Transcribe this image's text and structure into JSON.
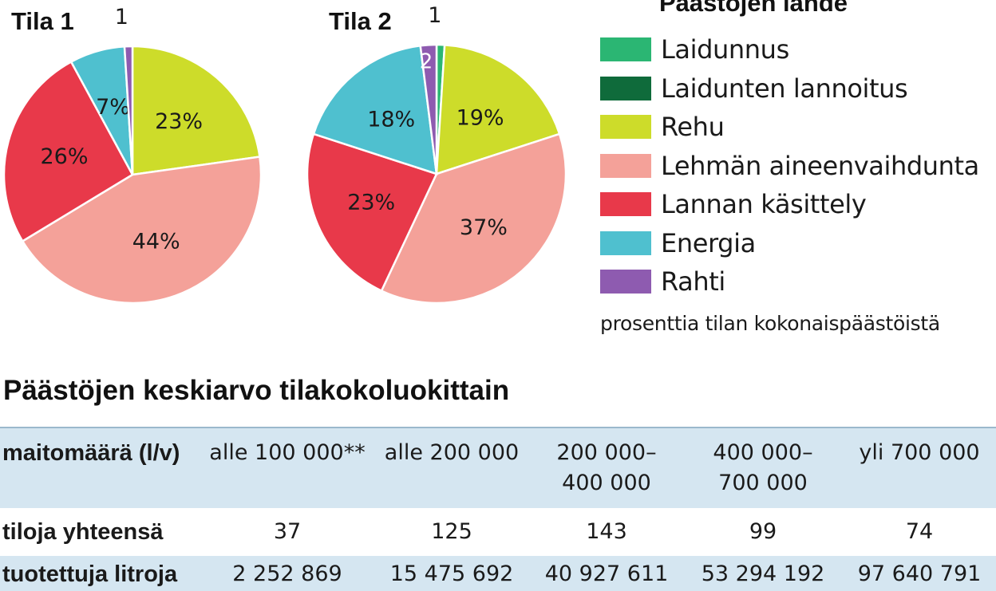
{
  "legend": {
    "title": "Päästöjen lähde",
    "items": [
      {
        "label": "Laidunnus",
        "color": "#2bb673"
      },
      {
        "label": "Laidunten lannoitus",
        "color": "#0f6b3b"
      },
      {
        "label": "Rehu",
        "color": "#cddc2a"
      },
      {
        "label": "Lehmän aineenvaihdunta",
        "color": "#f4a199"
      },
      {
        "label": "Lannan käsittely",
        "color": "#e8394a"
      },
      {
        "label": "Energia",
        "color": "#4fc0cf"
      },
      {
        "label": "Rahti",
        "color": "#8e5bb0"
      }
    ],
    "note": "prosenttia tilan kokonaispäästöistä"
  },
  "chart_data": [
    {
      "type": "pie",
      "title": "Tila 1",
      "slices": [
        {
          "category": "Rehu",
          "value": 23,
          "label": "23%"
        },
        {
          "category": "Lehmän aineenvaihdunta",
          "value": 44,
          "label": "44%"
        },
        {
          "category": "Lannan käsittely",
          "value": 26,
          "label": "26%"
        },
        {
          "category": "Energia",
          "value": 7,
          "label": "7%"
        },
        {
          "category": "Rahti",
          "value": 1,
          "label": "1"
        }
      ]
    },
    {
      "type": "pie",
      "title": "Tila 2",
      "slices": [
        {
          "category": "Laidunnus",
          "value": 1,
          "label": "1"
        },
        {
          "category": "Rehu",
          "value": 19,
          "label": "19%"
        },
        {
          "category": "Lehmän aineenvaihdunta",
          "value": 37,
          "label": "37%"
        },
        {
          "category": "Lannan käsittely",
          "value": 23,
          "label": "23%"
        },
        {
          "category": "Energia",
          "value": 18,
          "label": "18%"
        },
        {
          "category": "Rahti",
          "value": 2,
          "label": "2"
        }
      ]
    }
  ],
  "table": {
    "title": "Päästöjen keskiarvo tilakokoluokittain",
    "header": {
      "label": "maitomäärä (l/v)",
      "cols": [
        [
          "alle 100 000**"
        ],
        [
          "alle 200 000"
        ],
        [
          "200 000–",
          "400 000"
        ],
        [
          "400 000–",
          "700 000"
        ],
        [
          "yli 700 000"
        ]
      ]
    },
    "rows": [
      {
        "label": "tiloja yhteensä",
        "values": [
          "37",
          "125",
          "143",
          "99",
          "74"
        ]
      },
      {
        "label": "tuotettuja litroja",
        "values": [
          "2 252 869",
          "15 475 692",
          "40 927 611",
          "53 294 192",
          "97 640 791"
        ]
      }
    ]
  }
}
